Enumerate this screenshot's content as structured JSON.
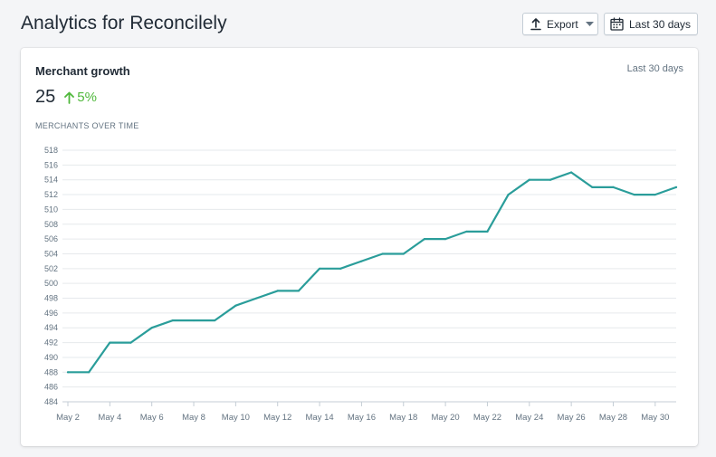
{
  "header": {
    "title": "Analytics for Reconcilely",
    "export_label": "Export",
    "range_label": "Last 30 days"
  },
  "card": {
    "title": "Merchant growth",
    "range": "Last 30 days",
    "metric_value": "25",
    "metric_change": "5%",
    "series_label": "MERCHANTS OVER TIME"
  },
  "colors": {
    "line": "#2a9d9a",
    "positive": "#50b83c"
  },
  "icons": {
    "export": "upload-icon",
    "range": "calendar-icon",
    "change": "arrow-up-icon"
  },
  "chart_data": {
    "type": "line",
    "x": [
      "May 2",
      "May 3",
      "May 4",
      "May 5",
      "May 6",
      "May 7",
      "May 8",
      "May 9",
      "May 10",
      "May 11",
      "May 12",
      "May 13",
      "May 14",
      "May 15",
      "May 16",
      "May 17",
      "May 18",
      "May 19",
      "May 20",
      "May 21",
      "May 22",
      "May 23",
      "May 24",
      "May 25",
      "May 26",
      "May 27",
      "May 28",
      "May 29",
      "May 30",
      "May 31"
    ],
    "values": [
      488,
      488,
      492,
      492,
      494,
      495,
      495,
      495,
      497,
      498,
      499,
      499,
      502,
      502,
      503,
      504,
      504,
      506,
      506,
      507,
      507,
      512,
      514,
      514,
      515,
      513,
      513,
      512,
      512,
      513
    ],
    "xtick_labels": [
      "May 2",
      "May 4",
      "May 6",
      "May 8",
      "May 10",
      "May 12",
      "May 14",
      "May 16",
      "May 18",
      "May 20",
      "May 22",
      "May 24",
      "May 26",
      "May 28",
      "May 30"
    ],
    "yticks": [
      484,
      486,
      488,
      490,
      492,
      494,
      496,
      498,
      500,
      502,
      504,
      506,
      508,
      510,
      512,
      514,
      516,
      518
    ],
    "ylim": [
      484,
      518
    ],
    "grid": true,
    "legend": "none"
  }
}
